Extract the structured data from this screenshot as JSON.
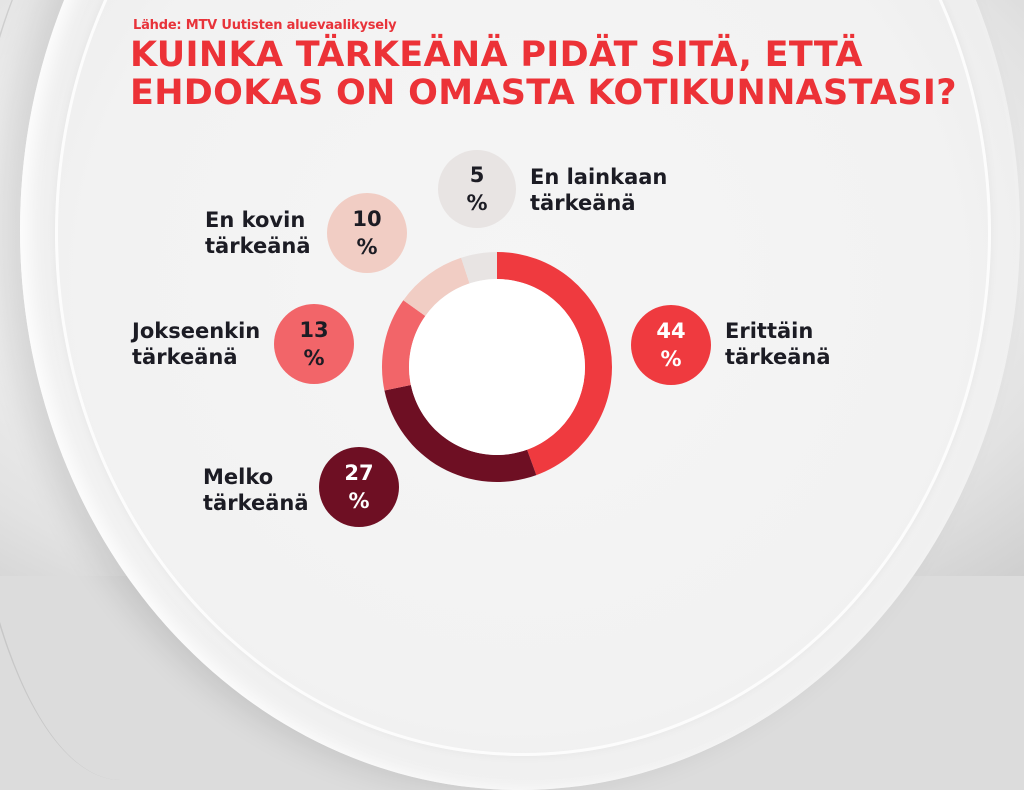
{
  "header": {
    "source": "Lähde: MTV Uutisten aluevaalikysely",
    "title_line1": "KUINKA TÄRKEÄNÄ PIDÄT SITÄ, ETTÄ",
    "title_line2": "EHDOKAS ON OMASTA KOTIKUNNASTASI?"
  },
  "colors": {
    "title": "#ec3237",
    "erittain": "#ef3a3f",
    "melko": "#6e0f23",
    "jokseenkin": "#f26569",
    "en_kovin": "#f1cdc4",
    "en_lainkaan": "#e8e4e3",
    "background": "#f0f0f0"
  },
  "segments": [
    {
      "key": "erittain",
      "value": "44",
      "percent_sign": "%",
      "label_line1": "Erittäin",
      "label_line2": "tärkeänä",
      "color": "#ef3a3f",
      "text_color": "#ffffff"
    },
    {
      "key": "melko",
      "value": "27",
      "percent_sign": "%",
      "label_line1": "Melko",
      "label_line2": "tärkeänä",
      "color": "#6e0f23",
      "text_color": "#ffffff"
    },
    {
      "key": "jokseenkin",
      "value": "13",
      "percent_sign": "%",
      "label_line1": "Jokseenkin",
      "label_line2": "tärkeänä",
      "color": "#f26569",
      "text_color": "#1c1c24"
    },
    {
      "key": "en_kovin",
      "value": "10",
      "percent_sign": "%",
      "label_line1": "En kovin",
      "label_line2": "tärkeänä",
      "color": "#f1cdc4",
      "text_color": "#1c1c24"
    },
    {
      "key": "en_lainkaan",
      "value": "5",
      "percent_sign": "%",
      "label_line1": "En lainkaan",
      "label_line2": "tärkeänä",
      "color": "#e8e4e3",
      "text_color": "#1c1c24"
    }
  ],
  "chart_data": {
    "type": "pie",
    "subtype": "donut",
    "title": "KUINKA TÄRKEÄNÄ PIDÄT SITÄ, ETTÄ EHDOKAS ON OMASTA KOTIKUNNASTASI?",
    "subtitle": "Lähde: MTV Uutisten aluevaalikysely",
    "categories": [
      "Erittäin tärkeänä",
      "Melko tärkeänä",
      "Jokseenkin tärkeänä",
      "En kovin tärkeänä",
      "En lainkaan tärkeänä"
    ],
    "values": [
      44,
      27,
      13,
      10,
      5
    ],
    "unit": "%",
    "colors": [
      "#ef3a3f",
      "#6e0f23",
      "#f26569",
      "#f1cdc4",
      "#e8e4e3"
    ],
    "start_angle": "12 o'clock",
    "direction": "clockwise",
    "legend": "callout bubbles around donut",
    "grid": false
  }
}
